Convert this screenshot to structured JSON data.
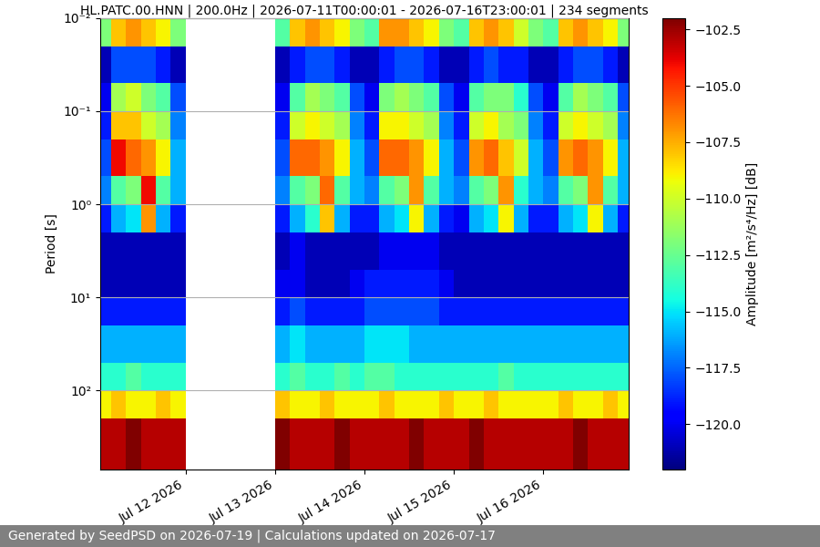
{
  "chart_data": {
    "type": "heatmap",
    "title": "HL.PATC.00.HNN | 200.0Hz | 2026-07-11T00:00:01 - 2026-07-16T23:00:01 | 234 segments",
    "footer": "Generated by SeedPSD on 2026-07-19 | Calculations updated on 2026-07-17",
    "y_label": "Period [s]",
    "log": "y",
    "grid": "y",
    "xlim": [
      "2026-07-11T01:00",
      "2026-07-16T23:00"
    ],
    "xticks": [
      {
        "value": "2026-07-12T00:00",
        "label": "Jul 12 2026"
      },
      {
        "value": "2026-07-13T00:00",
        "label": "Jul 13 2026"
      },
      {
        "value": "2026-07-14T00:00",
        "label": "Jul 14 2026"
      },
      {
        "value": "2026-07-15T00:00",
        "label": "Jul 15 2026"
      },
      {
        "value": "2026-07-16T00:00",
        "label": "Jul 16 2026"
      }
    ],
    "ylim": [
      700,
      0.01
    ],
    "yticks": [
      {
        "value": 0.01,
        "label": "10⁻²"
      },
      {
        "value": 0.1,
        "label": "10⁻¹"
      },
      {
        "value": 1,
        "label": "10⁰"
      },
      {
        "value": 10,
        "label": "10¹"
      },
      {
        "value": 100,
        "label": "10²"
      }
    ],
    "time_edges": [
      "2026-07-11T00:00",
      "2026-07-11T04:00",
      "2026-07-11T08:00",
      "2026-07-11T12:00",
      "2026-07-11T16:00",
      "2026-07-11T20:00",
      "2026-07-12T00:00",
      "2026-07-12T04:00",
      "2026-07-12T08:00",
      "2026-07-12T12:00",
      "2026-07-12T16:00",
      "2026-07-12T20:00",
      "2026-07-13T00:00",
      "2026-07-13T04:00",
      "2026-07-13T08:00",
      "2026-07-13T12:00",
      "2026-07-13T16:00",
      "2026-07-13T20:00",
      "2026-07-14T00:00",
      "2026-07-14T04:00",
      "2026-07-14T08:00",
      "2026-07-14T12:00",
      "2026-07-14T16:00",
      "2026-07-14T20:00",
      "2026-07-15T00:00",
      "2026-07-15T04:00",
      "2026-07-15T08:00",
      "2026-07-15T12:00",
      "2026-07-15T16:00",
      "2026-07-15T20:00",
      "2026-07-16T00:00",
      "2026-07-16T04:00",
      "2026-07-16T08:00",
      "2026-07-16T12:00",
      "2026-07-16T16:00",
      "2026-07-16T20:00",
      "2026-07-17T00:00"
    ],
    "period_edges": [
      0.01,
      0.02,
      0.05,
      0.1,
      0.2,
      0.5,
      1,
      2,
      5,
      10,
      20,
      50,
      100,
      200,
      700
    ],
    "cells": [
      [
        -112,
        -108,
        -107,
        -108,
        -109,
        -112,
        null,
        null,
        null,
        null,
        null,
        null,
        -113,
        -108,
        -107,
        -108,
        -109,
        -112,
        -113,
        -107,
        -107,
        -108,
        -109,
        -112,
        -113,
        -108,
        -107,
        -108,
        -110,
        -112,
        -113,
        -108,
        -107,
        -108,
        -109,
        -112
      ],
      [
        -121,
        -118,
        -118,
        -118,
        -119,
        -121,
        null,
        null,
        null,
        null,
        null,
        null,
        -121,
        -119,
        -118,
        -118,
        -119,
        -121,
        -121,
        -119,
        -118,
        -118,
        -119,
        -121,
        -121,
        -119,
        -118,
        -119,
        -119,
        -121,
        -121,
        -119,
        -118,
        -118,
        -119,
        -121
      ],
      [
        -120,
        -111,
        -110,
        -112,
        -113,
        -118,
        null,
        null,
        null,
        null,
        null,
        null,
        -120,
        -113,
        -111,
        -112,
        -113,
        -118,
        -120,
        -112,
        -111,
        -112,
        -113,
        -118,
        -120,
        -113,
        -112,
        -112,
        -114,
        -118,
        -120,
        -113,
        -111,
        -112,
        -113,
        -118
      ],
      [
        -119,
        -108,
        -108,
        -110,
        -111,
        -117,
        null,
        null,
        null,
        null,
        null,
        null,
        -119,
        -110,
        -109,
        -110,
        -111,
        -117,
        -119,
        -109,
        -109,
        -110,
        -111,
        -117,
        -119,
        -110,
        -109,
        -111,
        -112,
        -117,
        -119,
        -110,
        -109,
        -110,
        -111,
        -117
      ],
      [
        -118,
        -104,
        -106,
        -107,
        -109,
        -116,
        null,
        null,
        null,
        null,
        null,
        null,
        -118,
        -106,
        -106,
        -107,
        -109,
        -116,
        -118,
        -106,
        -106,
        -107,
        -109,
        -116,
        -118,
        -107,
        -106,
        -108,
        -110,
        -116,
        -118,
        -107,
        -106,
        -107,
        -109,
        -116
      ],
      [
        -117,
        -113,
        -112,
        -104,
        -113,
        -116,
        null,
        null,
        null,
        null,
        null,
        null,
        -117,
        -113,
        -112,
        -106,
        -113,
        -116,
        -117,
        -113,
        -112,
        -107,
        -113,
        -116,
        -117,
        -113,
        -112,
        -107,
        -114,
        -116,
        -117,
        -113,
        -112,
        -107,
        -113,
        -116
      ],
      [
        -119,
        -116,
        -115,
        -107,
        -116,
        -119,
        null,
        null,
        null,
        null,
        null,
        null,
        -119,
        -116,
        -114,
        -108,
        -116,
        -119,
        -119,
        -116,
        -115,
        -109,
        -116,
        -119,
        -120,
        -116,
        -115,
        -109,
        -116,
        -119,
        -119,
        -116,
        -115,
        -109,
        -116,
        -119
      ],
      [
        -121,
        -121,
        -121,
        -121,
        -121,
        -121,
        null,
        null,
        null,
        null,
        null,
        null,
        -121,
        -120,
        -121,
        -121,
        -121,
        -121,
        -121,
        -120,
        -120,
        -120,
        -120,
        -121,
        -121,
        -121,
        -121,
        -121,
        -121,
        -121,
        -121,
        -121,
        -121,
        -121,
        -121,
        -121
      ],
      [
        -121,
        -121,
        -121,
        -121,
        -121,
        -121,
        null,
        null,
        null,
        null,
        null,
        null,
        -120,
        -120,
        -121,
        -121,
        -121,
        -120,
        -119,
        -119,
        -119,
        -119,
        -119,
        -120,
        -121,
        -121,
        -121,
        -121,
        -121,
        -121,
        -121,
        -121,
        -121,
        -121,
        -121,
        -121
      ],
      [
        -119,
        -119,
        -119,
        -119,
        -119,
        -119,
        null,
        null,
        null,
        null,
        null,
        null,
        -119,
        -118,
        -119,
        -119,
        -119,
        -119,
        -118,
        -118,
        -118,
        -118,
        -118,
        -119,
        -119,
        -119,
        -119,
        -119,
        -119,
        -119,
        -119,
        -119,
        -119,
        -119,
        -119,
        -119
      ],
      [
        -116,
        -116,
        -116,
        -116,
        -116,
        -116,
        null,
        null,
        null,
        null,
        null,
        null,
        -116,
        -115,
        -116,
        -116,
        -116,
        -116,
        -115,
        -115,
        -115,
        -116,
        -116,
        -116,
        -116,
        -116,
        -116,
        -116,
        -116,
        -116,
        -116,
        -116,
        -116,
        -116,
        -116,
        -116
      ],
      [
        -114,
        -114,
        -113,
        -114,
        -114,
        -114,
        null,
        null,
        null,
        null,
        null,
        null,
        -114,
        -113,
        -114,
        -114,
        -113,
        -114,
        -113,
        -113,
        -114,
        -114,
        -114,
        -114,
        -114,
        -114,
        -114,
        -113,
        -114,
        -114,
        -114,
        -114,
        -114,
        -114,
        -114,
        -114
      ],
      [
        -109,
        -108,
        -109,
        -109,
        -108,
        -109,
        null,
        null,
        null,
        null,
        null,
        null,
        -108,
        -109,
        -109,
        -108,
        -109,
        -109,
        -109,
        -108,
        -109,
        -109,
        -109,
        -108,
        -109,
        -109,
        -108,
        -109,
        -109,
        -109,
        -109,
        -108,
        -109,
        -109,
        -108,
        -109
      ],
      [
        -103,
        -103,
        -102,
        -103,
        -103,
        -103,
        null,
        null,
        null,
        null,
        null,
        null,
        -102,
        -103,
        -103,
        -103,
        -102,
        -103,
        -103,
        -103,
        -103,
        -102,
        -103,
        -103,
        -103,
        -102,
        -103,
        -103,
        -103,
        -103,
        -103,
        -103,
        -102,
        -103,
        -103,
        -103
      ]
    ],
    "colorbar": {
      "label": "Amplitude [m²/s⁴/Hz] [dB]",
      "range": [
        -122,
        -102
      ],
      "ticks": [
        {
          "value": -120,
          "label": "−120.0"
        },
        {
          "value": -117.5,
          "label": "−117.5"
        },
        {
          "value": -115,
          "label": "−115.0"
        },
        {
          "value": -112.5,
          "label": "−112.5"
        },
        {
          "value": -110,
          "label": "−110.0"
        },
        {
          "value": -107.5,
          "label": "−107.5"
        },
        {
          "value": -105,
          "label": "−105.0"
        },
        {
          "value": -102.5,
          "label": "−102.5"
        }
      ]
    }
  }
}
